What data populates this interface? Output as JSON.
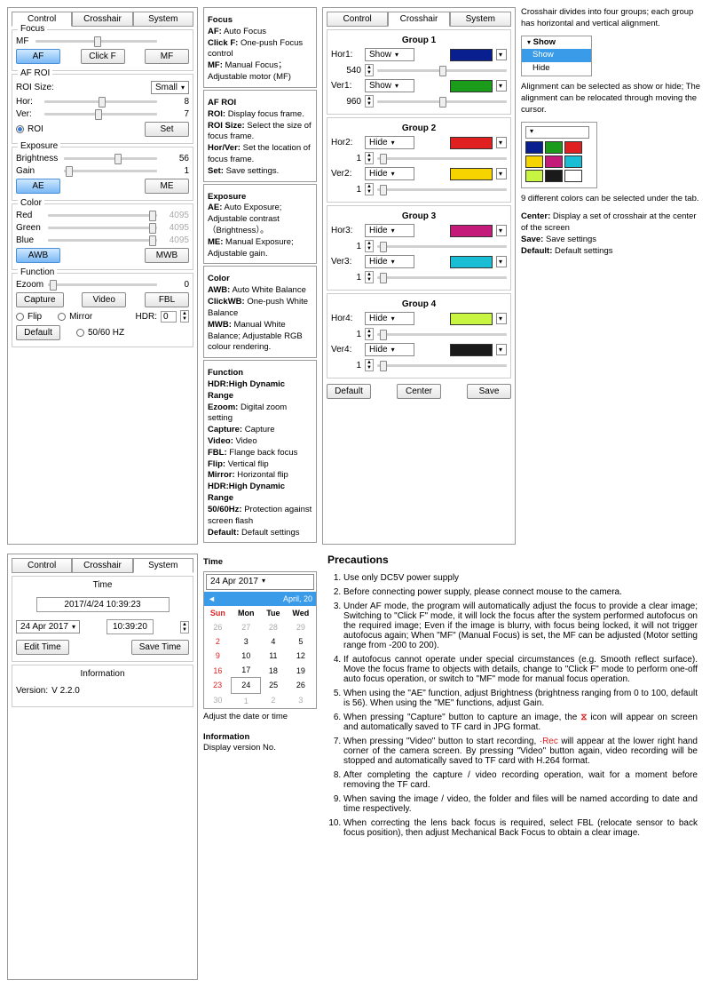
{
  "tabs": {
    "control": "Control",
    "crosshair": "Crosshair",
    "system": "System"
  },
  "control": {
    "focus": {
      "title": "Focus",
      "mf": "MF",
      "mf_val": " ",
      "btn_af": "AF",
      "btn_clickf": "Click F",
      "btn_mf": "MF"
    },
    "afroi": {
      "title": "AF ROI",
      "roi_size": "ROI Size:",
      "size_sel": "Small",
      "hor": "Hor:",
      "hor_val": "8",
      "ver": "Ver:",
      "ver_val": "7",
      "roi": "ROI",
      "set": "Set"
    },
    "exposure": {
      "title": "Exposure",
      "brightness": "Brightness",
      "br_val": "56",
      "gain": "Gain",
      "gain_val": "1",
      "btn_ae": "AE",
      "btn_me": "ME"
    },
    "color": {
      "title": "Color",
      "red": "Red",
      "green": "Green",
      "blue": "Blue",
      "val": "4095",
      "btn_awb": "AWB",
      "btn_mwb": "MWB"
    },
    "function": {
      "title": "Function",
      "ezoom": "Ezoom",
      "ezoom_val": "0",
      "btn_capture": "Capture",
      "btn_video": "Video",
      "btn_fbl": "FBL",
      "flip": "Flip",
      "mirror": "Mirror",
      "hdr": "HDR:",
      "hdr_val": "0",
      "hz": "50/60 HZ",
      "default": "Default"
    }
  },
  "control_desc": {
    "focus": {
      "t": "Focus",
      "a": "AF:",
      "ad": " Auto Focus",
      "b": "Click F:",
      "bd": " One-push Focus control",
      "c": "MF:",
      "cd": " Manual Focus；Adjustable motor (MF)"
    },
    "afroi": {
      "t": "AF ROI",
      "a": "ROI:",
      "ad": " Display focus frame.",
      "b": "ROI Size:",
      "bd": " Select the size of focus frame.",
      "c": "Hor/Ver:",
      "cd": " Set the location of focus frame.",
      "d": "Set:",
      "dd": " Save settings."
    },
    "exposure": {
      "t": "Exposure",
      "a": "AE:",
      "ad": " Auto Exposure; Adjustable contrast （Brightness）。",
      "b": "ME:",
      "bd": " Manual Exposure; Adjustable gain."
    },
    "color": {
      "t": "Color",
      "a": "AWB:",
      "ad": " Auto White Balance",
      "b": "ClickWB:",
      "bd": " One-push White Balance",
      "c": "MWB:",
      "cd": " Manual White Balance; Adjustable RGB colour rendering."
    },
    "function": {
      "t": "Function",
      "l1": "HDR:High Dynamic Range",
      "l2a": "Ezoom:",
      "l2": " Digital zoom setting",
      "l3a": "Capture:",
      "l3": " Capture",
      "l4a": "Video:",
      "l4": " Video",
      "l5a": "FBL:",
      "l5": " Flange back focus",
      "l6a": "Flip:",
      "l6": " Vertical flip",
      "l7a": "Mirror:",
      "l7": " Horizontal flip",
      "l8": "HDR:High Dynamic Range",
      "l9a": "50/60Hz:",
      "l9": " Protection against screen flash",
      "l10a": "Default:",
      "l10": " Default settings"
    }
  },
  "crosshair": {
    "groups": [
      {
        "t": "Group 1",
        "rows": [
          {
            "lbl": "Hor1:",
            "sel": "Show",
            "num": "540",
            "col": "#0a1f8f"
          },
          {
            "lbl": "Ver1:",
            "sel": "Show",
            "num": "960",
            "col": "#1a9c1a"
          }
        ]
      },
      {
        "t": "Group 2",
        "rows": [
          {
            "lbl": "Hor2:",
            "sel": "Hide",
            "num": "1",
            "col": "#e02020"
          },
          {
            "lbl": "Ver2:",
            "sel": "Hide",
            "num": "1",
            "col": "#f5d400"
          }
        ]
      },
      {
        "t": "Group 3",
        "rows": [
          {
            "lbl": "Hor3:",
            "sel": "Hide",
            "num": "1",
            "col": "#c41a7a"
          },
          {
            "lbl": "Ver3:",
            "sel": "Hide",
            "num": "1",
            "col": "#1abed4"
          }
        ]
      },
      {
        "t": "Group 4",
        "rows": [
          {
            "lbl": "Hor4:",
            "sel": "Hide",
            "num": "1",
            "col": "#c8f542"
          },
          {
            "lbl": "Ver4:",
            "sel": "Hide",
            "num": "1",
            "col": "#1a1a1a"
          }
        ]
      }
    ],
    "btn_default": "Default",
    "btn_center": "Center",
    "btn_save": "Save"
  },
  "crosshair_desc": {
    "p1": "Crosshair divides into four groups; each group has horizontal and vertical alignment.",
    "show": "Show",
    "show2": "Show",
    "hide": "Hide",
    "p2": "Alignment can be selected as show or hide; The alignment can be relocated through moving the cursor.",
    "swatches": [
      [
        "#0a1f8f",
        "#1a9c1a",
        "#e02020"
      ],
      [
        "#f5d400",
        "#c41a7a",
        "#1abed4"
      ],
      [
        "#c8f542",
        "#1a1a1a",
        "#ffffff"
      ]
    ],
    "p3": "9 different colors can be selected under the tab.",
    "center_t": "Center:",
    "center": " Display a set of crosshair at the center of the screen",
    "save_t": "Save:",
    "save": " Save settings",
    "def_t": "Default:",
    "def": " Default settings"
  },
  "system": {
    "time": {
      "title": "Time",
      "datetime": "2017/4/24  10:39:23",
      "date": "24 Apr 2017",
      "clock": "10:39:20",
      "edit": "Edit Time",
      "save": "Save Time"
    },
    "info": {
      "title": "Information",
      "ver_lbl": "Version:",
      "ver": "V 2.2.0"
    }
  },
  "system_desc": {
    "time_t": "Time",
    "date_sel": "24 Apr 2017",
    "month": "April,  20",
    "days": [
      "Sun",
      "Mon",
      "Tue",
      "Wed"
    ],
    "rows": [
      [
        "26",
        "27",
        "28",
        "29"
      ],
      [
        "2",
        "3",
        "4",
        "5"
      ],
      [
        "9",
        "10",
        "11",
        "12"
      ],
      [
        "16",
        "17",
        "18",
        "19"
      ],
      [
        "23",
        "24",
        "25",
        "26"
      ],
      [
        "30",
        "1",
        "2",
        "3"
      ]
    ],
    "adj": "Adjust the date or time",
    "info_t": "Information",
    "info": "Display version No."
  },
  "precautions": {
    "title": "Precautions",
    "items": [
      "Use only DC5V power supply",
      "Before connecting power supply, please connect mouse to the camera.",
      "Under AF mode, the program will automatically adjust the focus to provide a clear image; Switching to \"Click F\" mode, it will lock the focus after the system performed autofocus on the required image; Even if the image is blurry, with focus being locked, it will not trigger autofocus again; When \"MF\" (Manual Focus) is set, the MF can be adjusted (Motor setting range from -200 to 200).",
      "If autofocus cannot operate under special circumstances (e.g. Smooth reflect surface).  Move the focus frame to objects with details, change to \"Click F\" mode to perform one-off auto focus operation, or switch to \"MF\" mode for manual focus operation.",
      "When using the \"AE\" function, adjust Brightness (brightness ranging from 0 to 100, default is 56). When using the \"ME\" functions, adjust Gain.",
      "When pressing \"Capture\" button to capture an image, the  ⧖ icon will appear on screen and automatically saved to TF card in JPG format.",
      "When pressing \"Video\" button to start recording, ·Rec will appear at the lower right hand corner of the camera screen. By pressing \"Video\" button again, video recording will be stopped and automatically saved to TF card with H.264 format.",
      "After completing the capture / video recording operation, wait for a moment before removing the TF card.",
      "When saving the image / video, the folder and files will be named according to date and time respectively.",
      "When correcting the lens back focus is required, select FBL (relocate sensor to back focus position), then adjust Mechanical Back Focus to obtain a clear image."
    ]
  },
  "colors": {
    "red": "#d22",
    "blue_hl": "#3a9be8"
  }
}
